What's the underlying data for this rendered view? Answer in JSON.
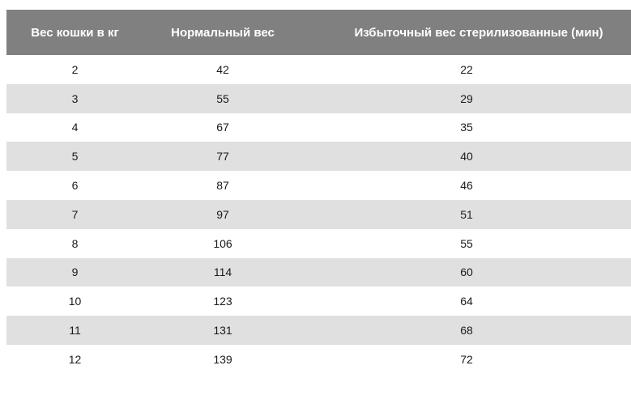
{
  "table": {
    "headers": [
      "Вес кошки в кг",
      "Нормальный вес",
      "Избыточный вес стерилизованные (мин)"
    ],
    "rows": [
      [
        "2",
        "42",
        "22"
      ],
      [
        "3",
        "55",
        "29"
      ],
      [
        "4",
        "67",
        "35"
      ],
      [
        "5",
        "77",
        "40"
      ],
      [
        "6",
        "87",
        "46"
      ],
      [
        "7",
        "97",
        "51"
      ],
      [
        "8",
        "106",
        "55"
      ],
      [
        "9",
        "114",
        "60"
      ],
      [
        "10",
        "123",
        "64"
      ],
      [
        "11",
        "131",
        "68"
      ],
      [
        "12",
        "139",
        "72"
      ]
    ]
  },
  "colors": {
    "header_bg": "#808080",
    "header_text": "#ffffff",
    "row_alt_bg": "#e0e0e0",
    "row_bg": "#ffffff"
  }
}
